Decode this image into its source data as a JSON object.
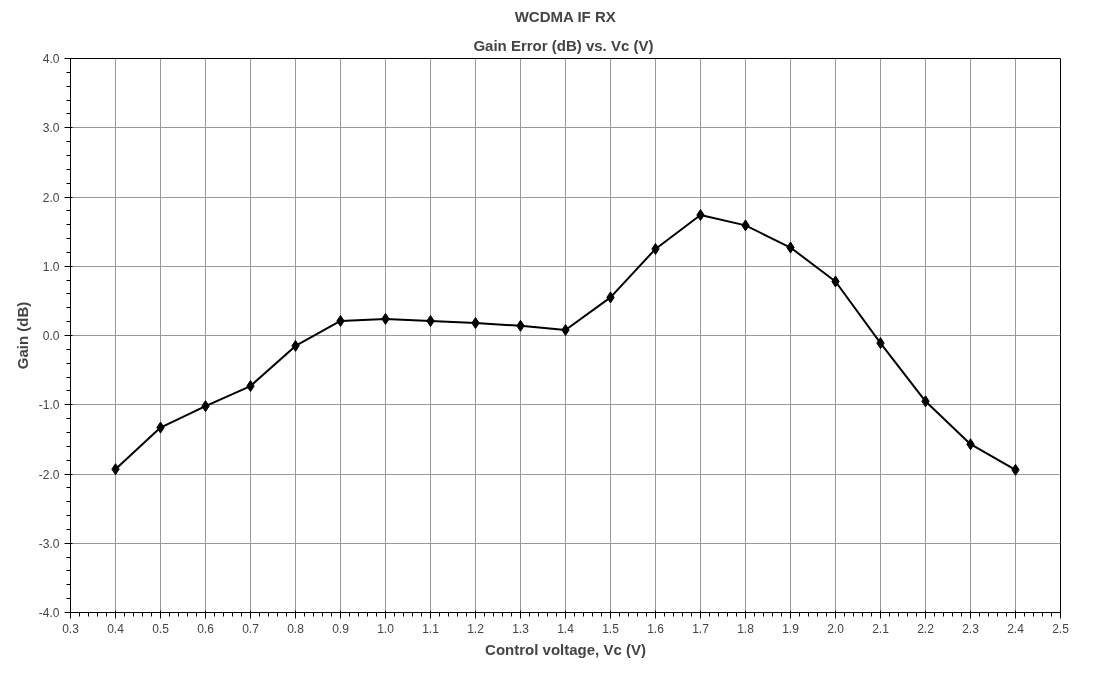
{
  "chart_data": {
    "type": "line",
    "title": "WCDMA IF RX",
    "subtitle": "Gain Error (dB)  vs. Vc (V)",
    "xlabel": "Control voltage, Vc (V)",
    "ylabel": "Gain (dB)",
    "x": [
      0.4,
      0.5,
      0.6,
      0.7,
      0.8,
      0.9,
      1.0,
      1.1,
      1.2,
      1.3,
      1.4,
      1.5,
      1.6,
      1.7,
      1.8,
      1.9,
      2.0,
      2.1,
      2.2,
      2.3,
      2.4
    ],
    "series": [
      {
        "color": "#000000",
        "values": [
          -1.93,
          -1.33,
          -1.02,
          -0.73,
          -0.15,
          0.21,
          0.24,
          0.21,
          0.18,
          0.14,
          0.08,
          0.55,
          1.25,
          1.74,
          1.59,
          1.27,
          0.78,
          -0.11,
          -0.95,
          -1.57,
          -1.94
        ]
      }
    ],
    "xlim": [
      0.3,
      2.5
    ],
    "ylim": [
      -4.0,
      4.0
    ],
    "xticks": [
      0.3,
      0.4,
      0.5,
      0.6,
      0.7,
      0.8,
      0.9,
      {
        "value": 1.0,
        "label": "1.0"
      },
      1.1,
      1.2,
      1.3,
      1.4,
      1.5,
      1.6,
      1.7,
      1.8,
      1.9,
      {
        "value": 2.0,
        "label": "2.0"
      },
      2.1,
      2.2,
      2.3,
      2.4,
      2.5
    ],
    "yticks": [
      {
        "value": -4.0,
        "label": "-4.0"
      },
      {
        "value": -3.0,
        "label": "-3.0"
      },
      {
        "value": -2.0,
        "label": "-2.0"
      },
      {
        "value": -1.0,
        "label": "-1.0"
      },
      {
        "value": 0.0,
        "label": "0.0"
      },
      {
        "value": 1.0,
        "label": "1.0"
      },
      {
        "value": 2.0,
        "label": "2.0"
      },
      {
        "value": 3.0,
        "label": "3.0"
      },
      {
        "value": 4.0,
        "label": "4.0"
      }
    ],
    "grid": true,
    "marker": "diamond",
    "line_style": "solid"
  }
}
